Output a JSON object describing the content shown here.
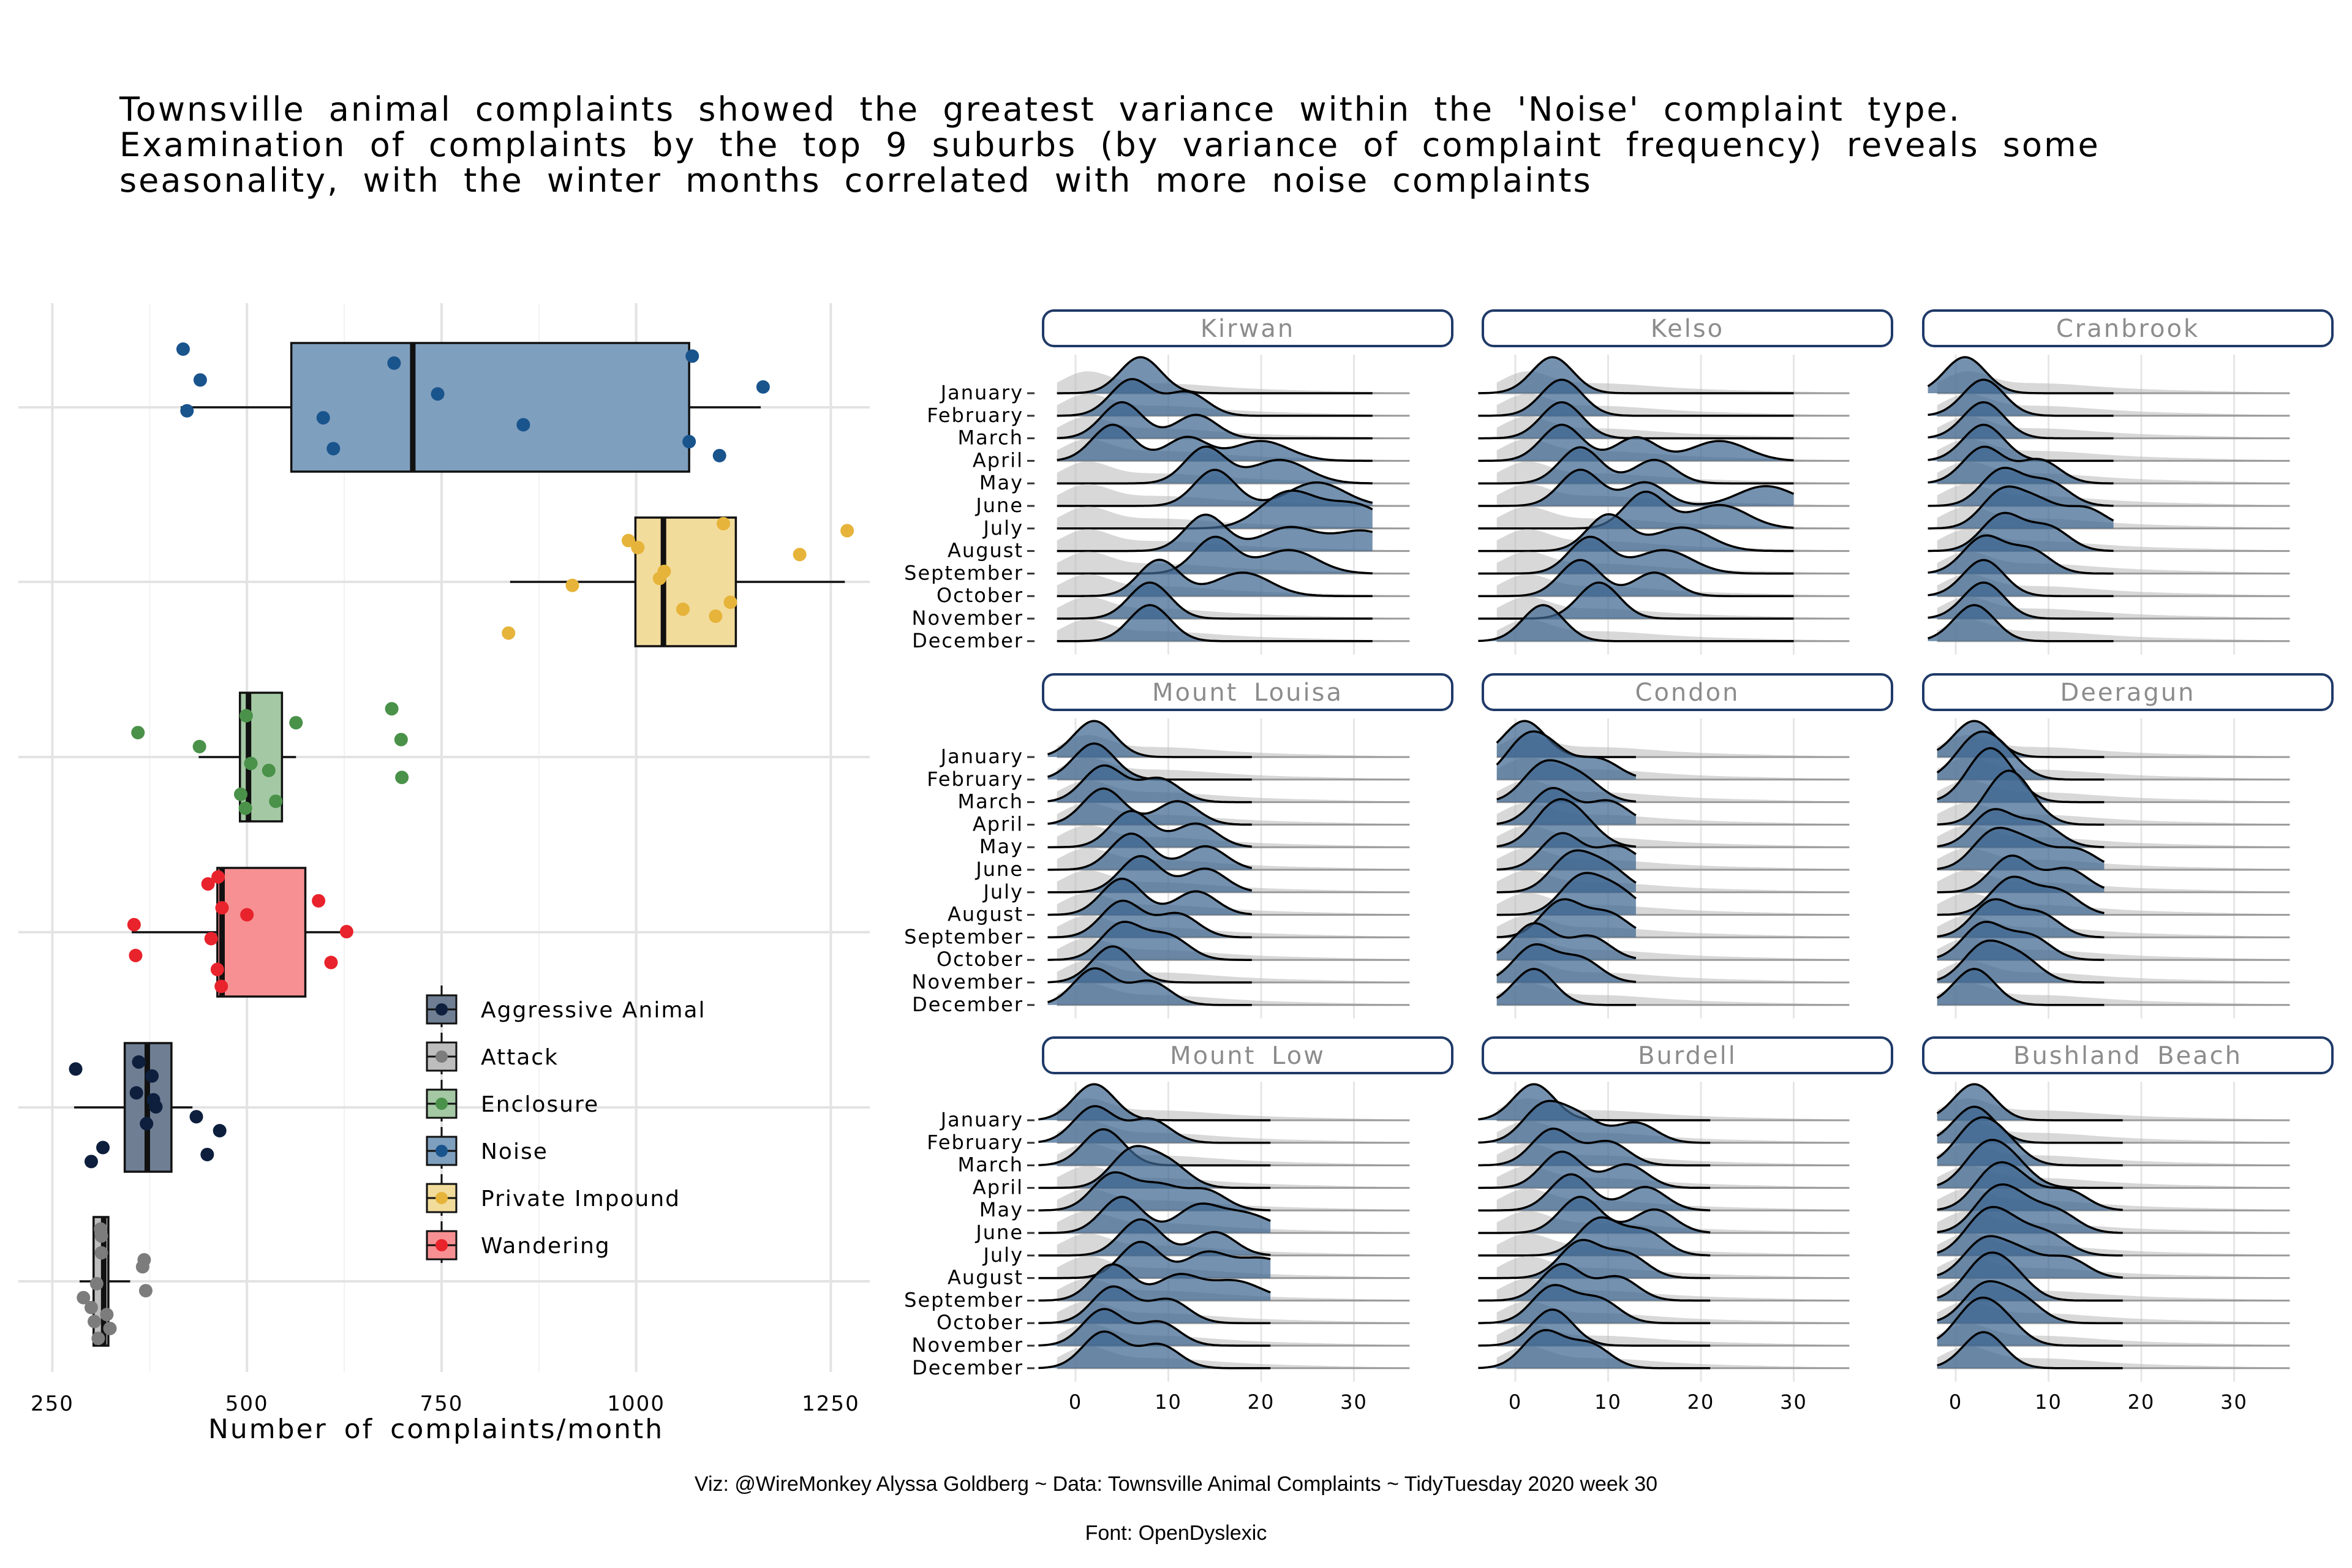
{
  "title_lines": [
    "Townsville animal complaints showed the greatest variance within the 'Noise' complaint type.",
    "Examination of complaints by the top 9 suburbs (by variance of complaint frequency) reveals some",
    "seasonality, with the winter months correlated with more noise complaints"
  ],
  "caption": {
    "line1": "Viz: @WireMonkey Alyssa Goldberg ~ Data: Townsville Animal Complaints ~ TidyTuesday 2020 week 30",
    "line2": "Font: OpenDyslexic"
  },
  "chart_data": [
    {
      "type": "box",
      "xlabel": "Number of complaints/month",
      "ylabel": "",
      "xlim": [
        230,
        1300
      ],
      "xticks": [
        250,
        500,
        750,
        1000,
        1250
      ],
      "grid": true,
      "legend_position": "inside-bottom-right",
      "legend": [
        "Aggressive Animal",
        "Attack",
        "Enclosure",
        "Noise",
        "Private Impound",
        "Wandering"
      ],
      "series": [
        {
          "name": "Noise",
          "color": "#19548d",
          "fill": "#7f9fbe",
          "box": {
            "min": 415,
            "q1": 557,
            "median": 713,
            "q3": 1068,
            "max": 1160
          },
          "points": [
            418,
            440,
            423,
            1068,
            1072,
            1163,
            598,
            611,
            689,
            745,
            855,
            1107
          ]
        },
        {
          "name": "Private Impound",
          "color": "#e6b43a",
          "fill": "#f2dc9c",
          "box": {
            "min": 838,
            "q1": 999,
            "median": 1035,
            "q3": 1128,
            "max": 1268
          },
          "points": [
            990,
            1036,
            1121,
            836,
            1002,
            1030,
            1060,
            1112,
            1210,
            918,
            1102,
            1271
          ]
        },
        {
          "name": "Enclosure",
          "color": "#4a914a",
          "fill": "#a4c8a4",
          "box": {
            "min": 438,
            "q1": 491,
            "median": 502,
            "q3": 545,
            "max": 563
          },
          "points": [
            360,
            505,
            492,
            686,
            698,
            528,
            537,
            499,
            439,
            699,
            498,
            563
          ]
        },
        {
          "name": "Wandering",
          "color": "#e8232b",
          "fill": "#f79092",
          "box": {
            "min": 352,
            "q1": 462,
            "median": 468,
            "q3": 575,
            "max": 622
          },
          "points": [
            355,
            357,
            467,
            592,
            628,
            608,
            463,
            468,
            454,
            462,
            450,
            500
          ]
        },
        {
          "name": "Aggressive Animal",
          "color": "#0d1f3d",
          "fill": "#6f7e93",
          "box": {
            "min": 278,
            "q1": 343,
            "median": 372,
            "q3": 403,
            "max": 430
          },
          "points": [
            435,
            315,
            361,
            358,
            371,
            449,
            280,
            380,
            465,
            300,
            378,
            383
          ]
        },
        {
          "name": "Attack",
          "color": "#7c7c7c",
          "fill": "#bdbdbd",
          "box": {
            "min": 285,
            "q1": 303,
            "median": 316,
            "q3": 322,
            "max": 350
          },
          "points": [
            300,
            309,
            313,
            307,
            320,
            312,
            368,
            370,
            304,
            313,
            366,
            290,
            324
          ]
        }
      ]
    },
    {
      "type": "ridgeline",
      "xticks": [
        0,
        10,
        20,
        30
      ],
      "xlim": [
        -5,
        38
      ],
      "months": [
        "January",
        "February",
        "March",
        "April",
        "May",
        "June",
        "July",
        "August",
        "September",
        "October",
        "November",
        "December"
      ],
      "fill_color": "#3e6690",
      "background_fill": "#b8b8b8",
      "panels": [
        {
          "suburb": "Kirwan",
          "peaks": [
            [
              7
            ],
            [
              6,
              12
            ],
            [
              5,
              13
            ],
            [
              4,
              12,
              20
            ],
            [
              14,
              22
            ],
            [
              15,
              26
            ],
            [
              23,
              30
            ],
            [
              14,
              23,
              31
            ],
            [
              15,
              23
            ],
            [
              9,
              18
            ],
            [
              8
            ],
            [
              8
            ]
          ]
        },
        {
          "suburb": "Kelso",
          "peaks": [
            [
              4
            ],
            [
              5
            ],
            [
              5
            ],
            [
              5,
              13,
              22
            ],
            [
              7,
              15
            ],
            [
              7,
              14,
              27
            ],
            [
              14,
              22
            ],
            [
              10,
              18
            ],
            [
              8,
              16
            ],
            [
              7,
              15
            ],
            [
              9
            ],
            [
              3
            ]
          ]
        },
        {
          "suburb": "Cranbrook",
          "peaks": [
            [
              1
            ],
            [
              3
            ],
            [
              3
            ],
            [
              3
            ],
            [
              3,
              9
            ],
            [
              5,
              10
            ],
            [
              5,
              9,
              14
            ],
            [
              5,
              10
            ],
            [
              3,
              8
            ],
            [
              3
            ],
            [
              3
            ],
            [
              2
            ]
          ]
        },
        {
          "suburb": "Mount Louisa",
          "peaks": [
            [
              2
            ],
            [
              2
            ],
            [
              3,
              9
            ],
            [
              3,
              11
            ],
            [
              6,
              13
            ],
            [
              6,
              14
            ],
            [
              7,
              14
            ],
            [
              5,
              13
            ],
            [
              5,
              11
            ],
            [
              5,
              10
            ],
            [
              4
            ],
            [
              2,
              8
            ]
          ]
        },
        {
          "suburb": "Condon",
          "peaks": [
            [
              1
            ],
            [
              1,
              4,
              9
            ],
            [
              3,
              7
            ],
            [
              4,
              10
            ],
            [
              4,
              7
            ],
            [
              5,
              11
            ],
            [
              6,
              10
            ],
            [
              7,
              11
            ],
            [
              5,
              10
            ],
            [
              2,
              8
            ],
            [
              2,
              7
            ],
            [
              2
            ]
          ]
        },
        {
          "suburb": "Deeragun",
          "peaks": [
            [
              2
            ],
            [
              2,
              5
            ],
            [
              3,
              5
            ],
            [
              5,
              7
            ],
            [
              4,
              9
            ],
            [
              4,
              8,
              13
            ],
            [
              6,
              12
            ],
            [
              6,
              11
            ],
            [
              4,
              9
            ],
            [
              3,
              8
            ],
            [
              3,
              7
            ],
            [
              2
            ]
          ]
        },
        {
          "suburb": "Mount Low",
          "peaks": [
            [
              2
            ],
            [
              2,
              8
            ],
            [
              3
            ],
            [
              6,
              10
            ],
            [
              4,
              9,
              14
            ],
            [
              5,
              13,
              18
            ],
            [
              7,
              15
            ],
            [
              7,
              14,
              20
            ],
            [
              4,
              11,
              17
            ],
            [
              4,
              10
            ],
            [
              3,
              9
            ],
            [
              3,
              9
            ]
          ]
        },
        {
          "suburb": "Burdell",
          "peaks": [
            [
              2
            ],
            [
              3,
              7,
              13
            ],
            [
              4,
              10
            ],
            [
              5,
              12
            ],
            [
              6,
              14
            ],
            [
              7,
              15
            ],
            [
              9,
              14
            ],
            [
              7,
              12
            ],
            [
              5,
              11
            ],
            [
              4,
              9
            ],
            [
              4
            ],
            [
              3,
              8
            ]
          ]
        },
        {
          "suburb": "Bushland Beach",
          "peaks": [
            [
              2
            ],
            [
              2
            ],
            [
              2,
              5
            ],
            [
              3,
              6
            ],
            [
              4,
              7,
              12
            ],
            [
              4,
              7,
              11
            ],
            [
              3,
              6,
              10
            ],
            [
              3,
              7,
              12
            ],
            [
              3,
              6
            ],
            [
              3,
              7
            ],
            [
              2,
              5
            ],
            [
              3
            ]
          ]
        }
      ]
    }
  ]
}
